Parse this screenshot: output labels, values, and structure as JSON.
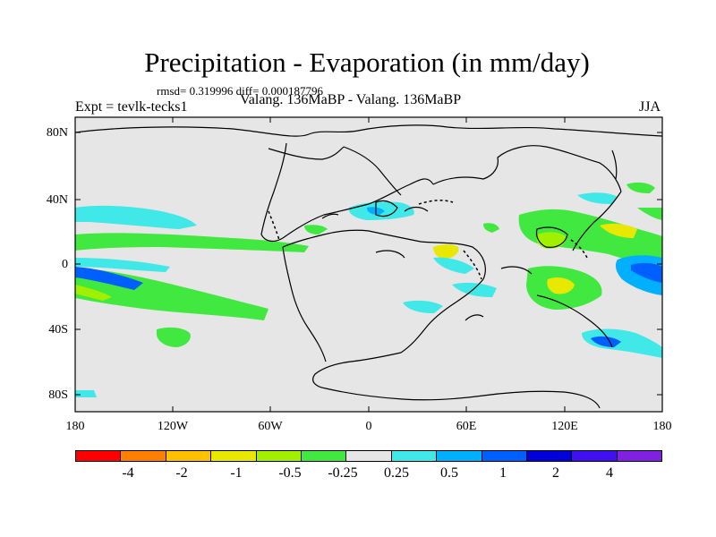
{
  "title": "Precipitation - Evaporation (in mm/day)",
  "stats": "rmsd= 0.319996 diff= 0.000187796",
  "left_subtitle": "Expt = tevlk-tecks1",
  "center_subtitle": "Valang. 136MaBP - Valang. 136MaBP",
  "right_subtitle": "JJA",
  "y_ticks": [
    "80N",
    "40N",
    "0",
    "40S",
    "80S"
  ],
  "x_ticks": [
    "180",
    "120W",
    "60W",
    "0",
    "60E",
    "120E",
    "180"
  ],
  "colorbar": {
    "colors": [
      "#ff0000",
      "#ff8000",
      "#ffc000",
      "#e8e800",
      "#a0f000",
      "#40e840",
      "#e6e6e6",
      "#40e8e8",
      "#00b0ff",
      "#0060ff",
      "#0000d8",
      "#4010f0",
      "#8020e0"
    ],
    "labels": [
      "-4",
      "-2",
      "-1",
      "-0.5",
      "-0.25",
      "0.25",
      "0.5",
      "1",
      "2",
      "4"
    ]
  },
  "colors": {
    "background_fill": "#e6e6e6",
    "coast": "#000000"
  }
}
